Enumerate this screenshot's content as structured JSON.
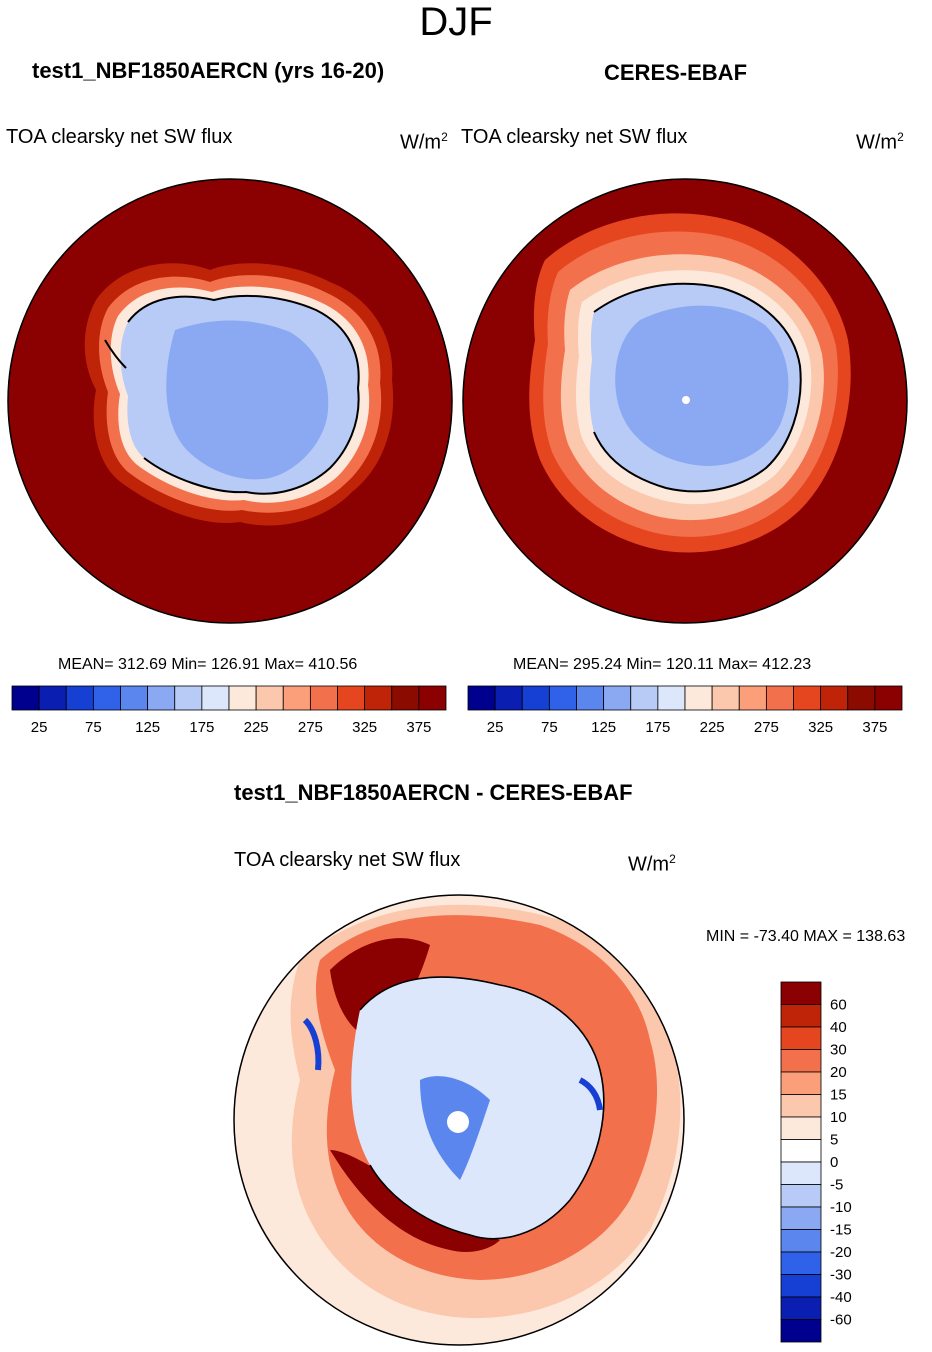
{
  "figure": {
    "season": "DJF",
    "diff_title": "test1_NBF1850AERCN - CERES-EBAF"
  },
  "panels": [
    {
      "title": "test1_NBF1850AERCN (yrs 16-20)",
      "variable": "TOA clearsky net SW flux",
      "units_base": "W/m",
      "units_exp": "2",
      "stats": "MEAN= 312.69  Min= 126.91  Max= 410.56"
    },
    {
      "title": "CERES-EBAF",
      "variable": "TOA clearsky net SW flux",
      "units_base": "W/m",
      "units_exp": "2",
      "stats": "MEAN= 295.24  Min= 120.11  Max= 412.23"
    }
  ],
  "diff_panel": {
    "variable": "TOA clearsky net SW flux",
    "units_base": "W/m",
    "units_exp": "2",
    "stats": "MIN = -73.40 MAX = 138.63"
  },
  "chart_data": [
    {
      "type": "heatmap",
      "title": "test1_NBF1850AERCN (yrs 16-20)",
      "projection": "south polar stereographic",
      "mean": 312.69,
      "min": 126.91,
      "max": 410.56,
      "colorbar": {
        "orientation": "horizontal",
        "levels": [
          25,
          50,
          75,
          100,
          125,
          150,
          175,
          200,
          225,
          250,
          275,
          300,
          325,
          350,
          375
        ],
        "tick_labels": [
          "25",
          "75",
          "125",
          "175",
          "225",
          "275",
          "325",
          "375"
        ],
        "colors": [
          "#00008e",
          "#0a1fb2",
          "#1640d4",
          "#2f62e8",
          "#5a86ee",
          "#8aa9f2",
          "#b7cbf6",
          "#dde7fb",
          "#fde9dc",
          "#fcc8ad",
          "#fa9f7a",
          "#f3704c",
          "#e5461f",
          "#bf2408",
          "#8c0b00",
          "#8b0000"
        ]
      }
    },
    {
      "type": "heatmap",
      "title": "CERES-EBAF",
      "projection": "south polar stereographic",
      "mean": 295.24,
      "min": 120.11,
      "max": 412.23,
      "colorbar": {
        "orientation": "horizontal",
        "levels": [
          25,
          50,
          75,
          100,
          125,
          150,
          175,
          200,
          225,
          250,
          275,
          300,
          325,
          350,
          375
        ],
        "tick_labels": [
          "25",
          "75",
          "125",
          "175",
          "225",
          "275",
          "325",
          "375"
        ],
        "colors": [
          "#00008e",
          "#0a1fb2",
          "#1640d4",
          "#2f62e8",
          "#5a86ee",
          "#8aa9f2",
          "#b7cbf6",
          "#dde7fb",
          "#fde9dc",
          "#fcc8ad",
          "#fa9f7a",
          "#f3704c",
          "#e5461f",
          "#bf2408",
          "#8c0b00",
          "#8b0000"
        ]
      }
    },
    {
      "type": "heatmap",
      "title": "test1_NBF1850AERCN - CERES-EBAF",
      "projection": "south polar stereographic",
      "min": -73.4,
      "max": 138.63,
      "colorbar": {
        "orientation": "vertical",
        "levels": [
          60,
          40,
          30,
          20,
          15,
          10,
          5,
          0,
          -5,
          -10,
          -15,
          -20,
          -30,
          -40,
          -60
        ],
        "tick_labels": [
          "60",
          "40",
          "30",
          "20",
          "15",
          "10",
          "5",
          "0",
          "-5",
          "-10",
          "-15",
          "-20",
          "-30",
          "-40",
          "-60"
        ],
        "colors": [
          "#8b0000",
          "#bf2408",
          "#e5461f",
          "#f3704c",
          "#fa9f7a",
          "#fcc8ad",
          "#fde9dc",
          "#ffffff",
          "#dde7fb",
          "#b7cbf6",
          "#8aa9f2",
          "#5a86ee",
          "#2f62e8",
          "#1640d4",
          "#0a1fb2",
          "#00008e"
        ]
      }
    }
  ]
}
